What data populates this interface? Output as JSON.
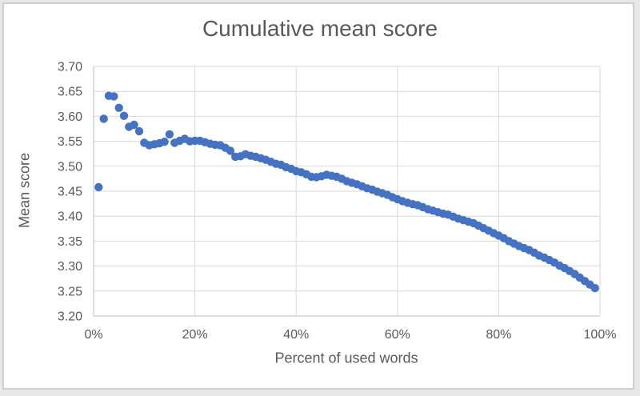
{
  "window": {
    "background": "#e8e8e8",
    "chart_background": "#ffffff",
    "chart_border": "#cfcfcf"
  },
  "chart_data": {
    "type": "scatter",
    "title": "Cumulative mean score",
    "xlabel": "Percent of used words",
    "ylabel": "Mean score",
    "xlim": [
      0,
      100
    ],
    "ylim": [
      3.2,
      3.7
    ],
    "grid": true,
    "legend": false,
    "marker_color": "#4472C4",
    "gridline_color": "#d9d9d9",
    "axis_line_color": "#bfbfbf",
    "text_color": "#595959",
    "x_tick_values": [
      0,
      20,
      40,
      60,
      80,
      100
    ],
    "x_tick_labels": [
      "0%",
      "20%",
      "40%",
      "60%",
      "80%",
      "100%"
    ],
    "y_tick_values": [
      3.2,
      3.25,
      3.3,
      3.35,
      3.4,
      3.45,
      3.5,
      3.55,
      3.6,
      3.65,
      3.7
    ],
    "y_tick_labels": [
      "3.20",
      "3.25",
      "3.30",
      "3.35",
      "3.40",
      "3.45",
      "3.50",
      "3.55",
      "3.60",
      "3.65",
      "3.70"
    ],
    "series": [
      {
        "name": "Cumulative mean score",
        "x": [
          1,
          2,
          3,
          4,
          5,
          6,
          7,
          8,
          9,
          10,
          11,
          12,
          13,
          14,
          15,
          16,
          17,
          18,
          19,
          20,
          21,
          22,
          23,
          24,
          25,
          26,
          27,
          28,
          29,
          30,
          31,
          32,
          33,
          34,
          35,
          36,
          37,
          38,
          39,
          40,
          41,
          42,
          43,
          44,
          45,
          46,
          47,
          48,
          49,
          50,
          51,
          52,
          53,
          54,
          55,
          56,
          57,
          58,
          59,
          60,
          61,
          62,
          63,
          64,
          65,
          66,
          67,
          68,
          69,
          70,
          71,
          72,
          73,
          74,
          75,
          76,
          77,
          78,
          79,
          80,
          81,
          82,
          83,
          84,
          85,
          86,
          87,
          88,
          89,
          90,
          91,
          92,
          93,
          94,
          95,
          96,
          97,
          98,
          99
        ],
        "y": [
          3.458,
          3.595,
          3.641,
          3.64,
          3.617,
          3.601,
          3.579,
          3.583,
          3.57,
          3.547,
          3.542,
          3.544,
          3.546,
          3.549,
          3.564,
          3.547,
          3.551,
          3.555,
          3.55,
          3.551,
          3.551,
          3.548,
          3.545,
          3.543,
          3.542,
          3.537,
          3.531,
          3.519,
          3.52,
          3.524,
          3.521,
          3.519,
          3.516,
          3.513,
          3.509,
          3.505,
          3.503,
          3.498,
          3.495,
          3.49,
          3.488,
          3.484,
          3.479,
          3.478,
          3.48,
          3.483,
          3.481,
          3.479,
          3.475,
          3.47,
          3.467,
          3.464,
          3.46,
          3.456,
          3.453,
          3.449,
          3.446,
          3.443,
          3.438,
          3.434,
          3.43,
          3.427,
          3.424,
          3.422,
          3.418,
          3.414,
          3.411,
          3.408,
          3.405,
          3.403,
          3.399,
          3.395,
          3.392,
          3.389,
          3.386,
          3.381,
          3.376,
          3.371,
          3.366,
          3.361,
          3.356,
          3.35,
          3.345,
          3.34,
          3.336,
          3.332,
          3.327,
          3.321,
          3.317,
          3.312,
          3.307,
          3.301,
          3.296,
          3.29,
          3.284,
          3.277,
          3.27,
          3.263,
          3.256
        ]
      }
    ]
  }
}
